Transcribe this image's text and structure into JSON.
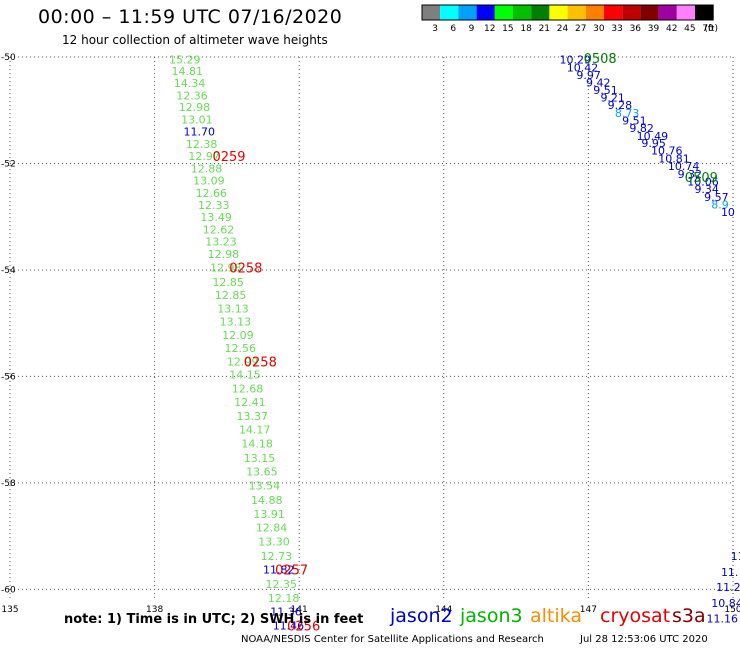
{
  "header": {
    "title": "00:00 – 11:59 UTC 07/16/2020",
    "subtitle": "12 hour collection of altimeter wave heights"
  },
  "colorbar": {
    "unit": "(ft)",
    "bins": [
      {
        "label": "3",
        "color": "#7f7f7f"
      },
      {
        "label": "6",
        "color": "#00ffff"
      },
      {
        "label": "9",
        "color": "#00a0ff"
      },
      {
        "label": "12",
        "color": "#0000ff"
      },
      {
        "label": "15",
        "color": "#00ff00"
      },
      {
        "label": "18",
        "color": "#00c000"
      },
      {
        "label": "21",
        "color": "#008000"
      },
      {
        "label": "24",
        "color": "#ffff00"
      },
      {
        "label": "27",
        "color": "#ffc000"
      },
      {
        "label": "30",
        "color": "#ff8000"
      },
      {
        "label": "33",
        "color": "#ff0000"
      },
      {
        "label": "36",
        "color": "#c00000"
      },
      {
        "label": "39",
        "color": "#800000"
      },
      {
        "label": "42",
        "color": "#a000a0"
      },
      {
        "label": "45",
        "color": "#ff80ff"
      },
      {
        "label": "70",
        "color": "#000000"
      }
    ]
  },
  "map": {
    "lat_labels": [
      "-50",
      "-52",
      "-54",
      "-56",
      "-58",
      "-60"
    ],
    "lon_labels": [
      "135",
      "138",
      "141",
      "144",
      "147",
      "150"
    ]
  },
  "chart_data": {
    "type": "scatter",
    "title": "00:00 – 11:59 UTC 07/16/2020",
    "subtitle": "12 hour collection of altimeter wave heights",
    "unit": "ft",
    "xlim": [
      135,
      150
    ],
    "ylim": [
      -60.2,
      -50
    ],
    "x_ticks": [
      135,
      138,
      141,
      144,
      147,
      150
    ],
    "y_ticks": [
      -50,
      -52,
      -54,
      -56,
      -58,
      -60
    ],
    "grid": true,
    "series": [
      {
        "name": "jason2",
        "color": "#0000cc",
        "points": []
      },
      {
        "name": "jason3",
        "color": "#00b400",
        "points": []
      },
      {
        "name": "altika",
        "color": "#ff8c00",
        "points": []
      },
      {
        "name": "cryosat",
        "color": "#e60000",
        "points": []
      },
      {
        "name": "s3a",
        "color": "#800000",
        "points": []
      }
    ],
    "track_a": [
      {
        "lon": 138.3,
        "lat": -50.05,
        "v": "15.29",
        "c": "#66dd55"
      },
      {
        "lon": 138.35,
        "lat": -50.26,
        "v": "14.81",
        "c": "#66dd55"
      },
      {
        "lon": 138.4,
        "lat": -50.49,
        "v": "14.34",
        "c": "#66dd55"
      },
      {
        "lon": 138.45,
        "lat": -50.72,
        "v": "12.36",
        "c": "#66dd55"
      },
      {
        "lon": 138.5,
        "lat": -50.94,
        "v": "12.98",
        "c": "#66dd55"
      },
      {
        "lon": 138.55,
        "lat": -51.17,
        "v": "13.01",
        "c": "#66dd55"
      },
      {
        "lon": 138.6,
        "lat": -51.4,
        "v": "11.70",
        "c": "#0000cc"
      },
      {
        "lon": 138.65,
        "lat": -51.63,
        "v": "12.38",
        "c": "#66dd55"
      },
      {
        "lon": 138.7,
        "lat": -51.86,
        "v": "12.97",
        "c": "#66dd55"
      },
      {
        "lon": 138.75,
        "lat": -52.09,
        "v": "12.88",
        "c": "#66dd55"
      },
      {
        "lon": 138.8,
        "lat": -52.32,
        "v": "13.09",
        "c": "#66dd55"
      },
      {
        "lon": 138.85,
        "lat": -52.55,
        "v": "12.66",
        "c": "#66dd55"
      },
      {
        "lon": 138.9,
        "lat": -52.78,
        "v": "12.33",
        "c": "#66dd55"
      },
      {
        "lon": 138.95,
        "lat": -53.01,
        "v": "13.49",
        "c": "#66dd55"
      },
      {
        "lon": 139.0,
        "lat": -53.24,
        "v": "12.62",
        "c": "#66dd55"
      },
      {
        "lon": 139.05,
        "lat": -53.47,
        "v": "13.23",
        "c": "#66dd55"
      },
      {
        "lon": 139.1,
        "lat": -53.7,
        "v": "12.98",
        "c": "#66dd55"
      },
      {
        "lon": 139.15,
        "lat": -53.95,
        "v": "12.98",
        "c": "#66dd55"
      },
      {
        "lon": 139.2,
        "lat": -54.23,
        "v": "12.85",
        "c": "#66dd55"
      },
      {
        "lon": 139.25,
        "lat": -54.47,
        "v": "12.85",
        "c": "#66dd55"
      },
      {
        "lon": 139.3,
        "lat": -54.72,
        "v": "13.13",
        "c": "#66dd55"
      },
      {
        "lon": 139.35,
        "lat": -54.97,
        "v": "13.13",
        "c": "#66dd55"
      },
      {
        "lon": 139.4,
        "lat": -55.22,
        "v": "12.09",
        "c": "#66dd55"
      },
      {
        "lon": 139.45,
        "lat": -55.47,
        "v": "12.56",
        "c": "#66dd55"
      },
      {
        "lon": 139.5,
        "lat": -55.72,
        "v": "12.99",
        "c": "#66dd55"
      },
      {
        "lon": 139.55,
        "lat": -55.96,
        "v": "14.15",
        "c": "#66dd55"
      },
      {
        "lon": 139.6,
        "lat": -56.23,
        "v": "12.68",
        "c": "#66dd55"
      },
      {
        "lon": 139.65,
        "lat": -56.48,
        "v": "12.41",
        "c": "#66dd55"
      },
      {
        "lon": 139.7,
        "lat": -56.74,
        "v": "13.37",
        "c": "#66dd55"
      },
      {
        "lon": 139.75,
        "lat": -57.0,
        "v": "14.17",
        "c": "#66dd55"
      },
      {
        "lon": 139.8,
        "lat": -57.26,
        "v": "14.18",
        "c": "#66dd55"
      },
      {
        "lon": 139.85,
        "lat": -57.53,
        "v": "13.15",
        "c": "#66dd55"
      },
      {
        "lon": 139.9,
        "lat": -57.79,
        "v": "13.65",
        "c": "#66dd55"
      },
      {
        "lon": 139.95,
        "lat": -58.05,
        "v": "13.54",
        "c": "#66dd55"
      },
      {
        "lon": 140.0,
        "lat": -58.32,
        "v": "14.88",
        "c": "#66dd55"
      },
      {
        "lon": 140.05,
        "lat": -58.58,
        "v": "13.91",
        "c": "#66dd55"
      },
      {
        "lon": 140.1,
        "lat": -58.84,
        "v": "12.84",
        "c": "#66dd55"
      },
      {
        "lon": 140.15,
        "lat": -59.1,
        "v": "13.30",
        "c": "#66dd55"
      },
      {
        "lon": 140.2,
        "lat": -59.37,
        "v": "12.73",
        "c": "#66dd55"
      },
      {
        "lon": 140.25,
        "lat": -59.63,
        "v": "11.82",
        "c": "#0000cc"
      },
      {
        "lon": 140.3,
        "lat": -59.9,
        "v": "12.35",
        "c": "#66dd55"
      },
      {
        "lon": 140.35,
        "lat": -60.16,
        "v": "12.18",
        "c": "#66dd55"
      },
      {
        "lon": 140.4,
        "lat": -60.42,
        "v": "11.36",
        "c": "#0000cc"
      },
      {
        "lon": 140.45,
        "lat": -60.68,
        "v": "11.46",
        "c": "#0000cc"
      }
    ],
    "track_b": [
      {
        "lon": 146.4,
        "lat": -50.05,
        "v": "10.29",
        "c": "#0000cc"
      },
      {
        "lon": 146.55,
        "lat": -50.2,
        "v": "10.42",
        "c": "#0000cc"
      },
      {
        "lon": 146.75,
        "lat": -50.34,
        "v": "9.97",
        "c": "#0000cc"
      },
      {
        "lon": 146.95,
        "lat": -50.48,
        "v": "9.42",
        "c": "#0000cc"
      },
      {
        "lon": 147.1,
        "lat": -50.62,
        "v": "9.51",
        "c": "#0000cc"
      },
      {
        "lon": 147.25,
        "lat": -50.76,
        "v": "9.21",
        "c": "#0000cc"
      },
      {
        "lon": 147.4,
        "lat": -50.9,
        "v": "9.28",
        "c": "#0000cc"
      },
      {
        "lon": 147.55,
        "lat": -51.05,
        "v": "8.73",
        "c": "#00a0ff"
      },
      {
        "lon": 147.7,
        "lat": -51.19,
        "v": "9.51",
        "c": "#0000cc"
      },
      {
        "lon": 147.85,
        "lat": -51.33,
        "v": "9.82",
        "c": "#0000cc"
      },
      {
        "lon": 148.0,
        "lat": -51.48,
        "v": "10.49",
        "c": "#0000cc"
      },
      {
        "lon": 148.1,
        "lat": -51.62,
        "v": "9.95",
        "c": "#0000cc"
      },
      {
        "lon": 148.3,
        "lat": -51.76,
        "v": "10.76",
        "c": "#0000cc"
      },
      {
        "lon": 148.45,
        "lat": -51.91,
        "v": "10.81",
        "c": "#0000cc"
      },
      {
        "lon": 148.65,
        "lat": -52.05,
        "v": "10.74",
        "c": "#0000cc"
      },
      {
        "lon": 148.85,
        "lat": -52.2,
        "v": "9.32",
        "c": "#0000cc"
      },
      {
        "lon": 149.05,
        "lat": -52.34,
        "v": "10.06",
        "c": "#0000cc"
      },
      {
        "lon": 149.2,
        "lat": -52.48,
        "v": "9.34",
        "c": "#0000cc"
      },
      {
        "lon": 149.4,
        "lat": -52.63,
        "v": "9.57",
        "c": "#0000cc"
      },
      {
        "lon": 149.55,
        "lat": -52.77,
        "v": "8.9",
        "c": "#00a0ff"
      },
      {
        "lon": 149.75,
        "lat": -52.91,
        "v": "10",
        "c": "#0000cc"
      }
    ],
    "track_c": [
      {
        "lon": 149.95,
        "lat": -59.37,
        "v": "11",
        "c": "#0000cc"
      },
      {
        "lon": 149.75,
        "lat": -59.67,
        "v": "11.",
        "c": "#0000cc"
      },
      {
        "lon": 149.65,
        "lat": -59.96,
        "v": "11.2",
        "c": "#0000cc"
      },
      {
        "lon": 149.55,
        "lat": -60.26,
        "v": "10.84",
        "c": "#0000cc"
      },
      {
        "lon": 149.45,
        "lat": -60.55,
        "v": "11.16",
        "c": "#0000cc"
      }
    ],
    "time_labels": [
      {
        "lon": 139.2,
        "lat": -51.86,
        "t": "0259",
        "c": "#e60000"
      },
      {
        "lon": 139.55,
        "lat": -53.95,
        "t": "0258",
        "c": "#e60000"
      },
      {
        "lon": 139.85,
        "lat": -55.72,
        "t": "0258",
        "c": "#e60000"
      },
      {
        "lon": 140.5,
        "lat": -59.63,
        "t": "0257",
        "c": "#e60000"
      },
      {
        "lon": 140.75,
        "lat": -60.68,
        "t": "0256",
        "c": "#e60000"
      },
      {
        "lon": 146.9,
        "lat": -50.02,
        "t": "0508",
        "c": "#008000"
      },
      {
        "lon": 149.0,
        "lat": -52.25,
        "t": "0509",
        "c": "#008000"
      }
    ]
  },
  "footer": {
    "note": "note: 1) Time is in UTC; 2) SWH is in feet",
    "legend": [
      {
        "label": "jason2",
        "color": "#0000cc"
      },
      {
        "label": "jason3",
        "color": "#00b400"
      },
      {
        "label": "altika",
        "color": "#ff8c00"
      },
      {
        "label": "cryosat",
        "color": "#e60000"
      },
      {
        "label": "s3a",
        "color": "#800000"
      }
    ],
    "org": "NOAA/NESDIS Center for Satellite Applications and Research",
    "timestamp": "Jul 28 12:53:06 UTC 2020"
  }
}
